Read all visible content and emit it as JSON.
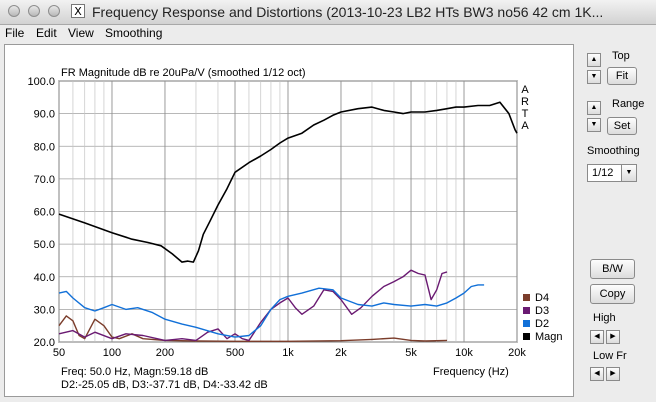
{
  "window": {
    "title": "Frequency Response and Distortions (2013-10-23 LB2 HTs BW3 no56  42 cm 1K...",
    "icon_glyph": "X"
  },
  "menu": [
    "File",
    "Edit",
    "View",
    "Smoothing"
  ],
  "chart_data": {
    "type": "line",
    "title": "FR Magnitude dB re 20uPa/V (smoothed 1/12 oct)",
    "xlabel": "Frequency (Hz)",
    "ylabel": "",
    "x_scale": "log",
    "xlim": [
      50,
      20000
    ],
    "ylim": [
      20,
      100
    ],
    "x_ticks": [
      {
        "v": 50,
        "label": "50"
      },
      {
        "v": 100,
        "label": "100"
      },
      {
        "v": 200,
        "label": "200"
      },
      {
        "v": 500,
        "label": "500"
      },
      {
        "v": 1000,
        "label": "1k"
      },
      {
        "v": 2000,
        "label": "2k"
      },
      {
        "v": 5000,
        "label": "5k"
      },
      {
        "v": 10000,
        "label": "10k"
      },
      {
        "v": 20000,
        "label": "20k"
      }
    ],
    "x_minor": [
      60,
      70,
      80,
      90,
      300,
      400,
      600,
      700,
      800,
      900,
      3000,
      4000,
      6000,
      7000,
      8000,
      9000
    ],
    "y_ticks": [
      20,
      30,
      40,
      50,
      60,
      70,
      80,
      90,
      100
    ],
    "y_tick_labels": [
      "20.0",
      "30.0",
      "40.0",
      "50.0",
      "60.0",
      "70.0",
      "80.0",
      "90.0",
      "100.0"
    ],
    "grid": true,
    "watermark": [
      "A",
      "R",
      "T",
      "A"
    ],
    "legend_position": "bottom-right",
    "series": [
      {
        "name": "Magn",
        "color": "#000000",
        "points": [
          [
            50,
            59.2
          ],
          [
            70,
            56.5
          ],
          [
            100,
            53.5
          ],
          [
            130,
            51.5
          ],
          [
            160,
            50.5
          ],
          [
            190,
            49.5
          ],
          [
            220,
            47
          ],
          [
            250,
            44.5
          ],
          [
            270,
            44.8
          ],
          [
            290,
            44.5
          ],
          [
            310,
            48
          ],
          [
            330,
            53
          ],
          [
            360,
            57
          ],
          [
            400,
            62
          ],
          [
            450,
            67
          ],
          [
            500,
            72
          ],
          [
            600,
            75
          ],
          [
            700,
            77
          ],
          [
            800,
            79
          ],
          [
            900,
            81
          ],
          [
            1000,
            82.5
          ],
          [
            1200,
            84
          ],
          [
            1400,
            86.5
          ],
          [
            1600,
            88
          ],
          [
            1800,
            89.5
          ],
          [
            2000,
            90.5
          ],
          [
            2500,
            91.5
          ],
          [
            3000,
            92
          ],
          [
            3500,
            91
          ],
          [
            4000,
            90.5
          ],
          [
            4500,
            90
          ],
          [
            5000,
            90.5
          ],
          [
            6000,
            90.5
          ],
          [
            7000,
            91
          ],
          [
            8000,
            91.5
          ],
          [
            9000,
            92
          ],
          [
            10000,
            92
          ],
          [
            12000,
            92.5
          ],
          [
            14000,
            92.5
          ],
          [
            16000,
            93.5
          ],
          [
            18000,
            90
          ],
          [
            19500,
            85
          ],
          [
            20000,
            84
          ]
        ]
      },
      {
        "name": "D2",
        "color": "#1170d8",
        "points": [
          [
            50,
            35
          ],
          [
            55,
            35.5
          ],
          [
            60,
            33.5
          ],
          [
            70,
            30.5
          ],
          [
            80,
            29.5
          ],
          [
            90,
            30.5
          ],
          [
            100,
            31.5
          ],
          [
            120,
            30
          ],
          [
            140,
            30.5
          ],
          [
            170,
            29
          ],
          [
            200,
            27
          ],
          [
            250,
            25.5
          ],
          [
            300,
            24.5
          ],
          [
            400,
            22.5
          ],
          [
            500,
            21.5
          ],
          [
            600,
            22
          ],
          [
            700,
            25
          ],
          [
            800,
            30
          ],
          [
            900,
            33
          ],
          [
            1000,
            34
          ],
          [
            1200,
            35
          ],
          [
            1500,
            36.5
          ],
          [
            1800,
            36
          ],
          [
            2000,
            33.5
          ],
          [
            2500,
            31.5
          ],
          [
            3000,
            31
          ],
          [
            3500,
            32
          ],
          [
            4000,
            31.5
          ],
          [
            5000,
            31
          ],
          [
            6000,
            31.5
          ],
          [
            7000,
            31
          ],
          [
            8000,
            32
          ],
          [
            9000,
            33.5
          ],
          [
            10000,
            35
          ],
          [
            11000,
            37
          ],
          [
            12000,
            37.5
          ],
          [
            13000,
            37.5
          ]
        ]
      },
      {
        "name": "D3",
        "color": "#6a1a72",
        "points": [
          [
            50,
            22.5
          ],
          [
            60,
            23.5
          ],
          [
            70,
            21.5
          ],
          [
            80,
            23
          ],
          [
            100,
            21
          ],
          [
            120,
            22.5
          ],
          [
            150,
            22
          ],
          [
            200,
            20.5
          ],
          [
            250,
            21
          ],
          [
            300,
            20.5
          ],
          [
            350,
            23
          ],
          [
            400,
            24
          ],
          [
            450,
            21
          ],
          [
            500,
            22.5
          ],
          [
            550,
            21
          ],
          [
            600,
            20.5
          ],
          [
            700,
            26
          ],
          [
            800,
            30
          ],
          [
            900,
            32
          ],
          [
            1000,
            33.5
          ],
          [
            1100,
            30.5
          ],
          [
            1200,
            28.5
          ],
          [
            1400,
            31
          ],
          [
            1600,
            36
          ],
          [
            1800,
            35.5
          ],
          [
            2000,
            33
          ],
          [
            2300,
            28.5
          ],
          [
            2600,
            30.5
          ],
          [
            3000,
            34
          ],
          [
            3500,
            37
          ],
          [
            4000,
            38.5
          ],
          [
            4500,
            40
          ],
          [
            5000,
            42
          ],
          [
            5500,
            41
          ],
          [
            6000,
            40.5
          ],
          [
            6500,
            33
          ],
          [
            7000,
            36
          ],
          [
            7500,
            41
          ],
          [
            8000,
            41.5
          ]
        ]
      },
      {
        "name": "D4",
        "color": "#7b3d2b",
        "points": [
          [
            50,
            25
          ],
          [
            55,
            28
          ],
          [
            60,
            26.5
          ],
          [
            65,
            22
          ],
          [
            70,
            21
          ],
          [
            80,
            27
          ],
          [
            90,
            25
          ],
          [
            100,
            21.5
          ],
          [
            110,
            21
          ],
          [
            130,
            22.5
          ],
          [
            150,
            21
          ],
          [
            200,
            20.5
          ],
          [
            300,
            20.3
          ],
          [
            500,
            20.2
          ],
          [
            1000,
            20.2
          ],
          [
            2000,
            20.4
          ],
          [
            3000,
            20.8
          ],
          [
            4000,
            21.2
          ],
          [
            5000,
            20.5
          ],
          [
            6000,
            20.3
          ],
          [
            8000,
            20.5
          ]
        ]
      }
    ],
    "legend": [
      "D4",
      "D3",
      "D2",
      "Magn"
    ],
    "readout": {
      "line1": "Freq: 50.0 Hz, Magn:59.18 dB",
      "line2": "D2:-25.05 dB, D3:-37.71 dB, D4:-33.42 dB"
    }
  },
  "controls": {
    "top_label": "Top",
    "fit_label": "Fit",
    "range_label": "Range",
    "set_label": "Set",
    "smoothing_label": "Smoothing",
    "smoothing_value": "1/12",
    "bw_label": "B/W",
    "copy_label": "Copy",
    "high_label": "High",
    "low_fr_label": "Low Fr",
    "up_arrow": "▲",
    "down_arrow": "▼",
    "left_arrow": "◀",
    "right_arrow": "▶"
  }
}
